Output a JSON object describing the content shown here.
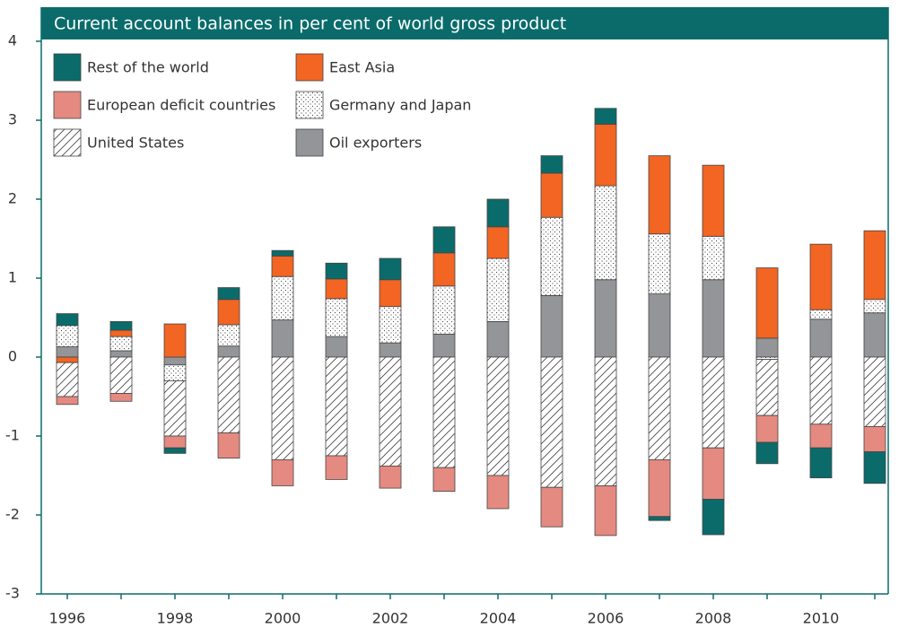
{
  "chart_data": {
    "type": "bar",
    "stacked": true,
    "title": "Current account balances in per cent of world gross product",
    "categories": [
      "1996",
      null,
      "1998",
      null,
      "2000",
      null,
      "2002",
      null,
      "2004",
      null,
      "2006",
      null,
      "2008",
      null,
      "2010",
      null
    ],
    "series": [
      {
        "name": "Rest of the world",
        "color": "#0b6b6b",
        "values": [
          0.15,
          0.11,
          -0.07,
          0.15,
          0.07,
          0.2,
          0.27,
          0.33,
          0.35,
          0.22,
          0.2,
          -0.05,
          -0.45,
          -0.27,
          -0.38,
          -0.4
        ]
      },
      {
        "name": "East Asia",
        "color": "#f26522",
        "values": [
          -0.07,
          0.08,
          0.42,
          0.32,
          0.26,
          0.25,
          0.34,
          0.42,
          0.4,
          0.56,
          0.78,
          0.99,
          0.9,
          0.89,
          0.83,
          0.87
        ]
      },
      {
        "name": "European deficit countries",
        "color": "#e48a80",
        "values": [
          -0.1,
          -0.1,
          -0.15,
          -0.32,
          -0.33,
          -0.3,
          -0.28,
          -0.3,
          -0.42,
          -0.5,
          -0.63,
          -0.72,
          -0.65,
          -0.34,
          -0.3,
          -0.32
        ]
      },
      {
        "name": "Germany and Japan",
        "color": "#ffffff",
        "pattern": "dots",
        "values": [
          0.27,
          0.18,
          -0.2,
          0.27,
          0.55,
          0.48,
          0.46,
          0.61,
          0.8,
          0.99,
          1.19,
          0.76,
          0.55,
          -0.03,
          0.12,
          0.17
        ]
      },
      {
        "name": "United States",
        "color": "#ffffff",
        "pattern": "hatch",
        "values": [
          -0.43,
          -0.46,
          -0.7,
          -0.96,
          -1.3,
          -1.25,
          -1.38,
          -1.4,
          -1.5,
          -1.65,
          -1.63,
          -1.3,
          -1.15,
          -0.71,
          -0.85,
          -0.88
        ]
      },
      {
        "name": "Oil exporters",
        "color": "#939598",
        "values": [
          0.13,
          0.08,
          -0.1,
          0.14,
          0.47,
          0.26,
          0.18,
          0.29,
          0.45,
          0.78,
          0.98,
          0.8,
          0.98,
          0.24,
          0.48,
          0.56
        ]
      }
    ],
    "ylim": [
      -3,
      4
    ],
    "yticks": [
      -3,
      -2,
      -1,
      0,
      1,
      2,
      3,
      4
    ]
  }
}
